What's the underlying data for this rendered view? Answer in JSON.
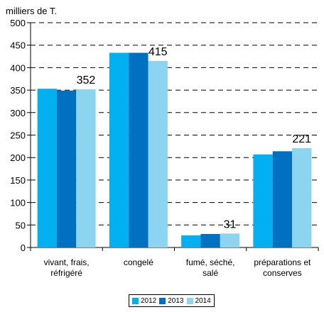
{
  "chart_data": {
    "type": "bar",
    "title": "",
    "ylabel": "milliers de T.",
    "xlabel": "",
    "ylim": [
      0,
      500
    ],
    "yticks": [
      0,
      50,
      100,
      150,
      200,
      250,
      300,
      350,
      400,
      450,
      500
    ],
    "grid": "horizontal-dashed",
    "legend_position": "bottom-center",
    "categories": [
      [
        "vivant, frais,",
        "réfrigéré"
      ],
      [
        "congelé"
      ],
      [
        "fumé, séché,",
        "salé"
      ],
      [
        "préparations et",
        "conserves"
      ]
    ],
    "series": [
      {
        "name": "2012",
        "color": "#00b0f0",
        "values": [
          353,
          433,
          27,
          207
        ]
      },
      {
        "name": "2013",
        "color": "#0070c0",
        "values": [
          349,
          433,
          30,
          214
        ]
      },
      {
        "name": "2014",
        "color": "#8dd4f0",
        "values": [
          352,
          415,
          31,
          221
        ]
      }
    ],
    "data_labels": [
      {
        "category": 0,
        "series": 2,
        "text": "352"
      },
      {
        "category": 1,
        "series": 2,
        "text": "415"
      },
      {
        "category": 2,
        "series": 2,
        "text": "31"
      },
      {
        "category": 3,
        "series": 2,
        "text": "221"
      }
    ]
  }
}
